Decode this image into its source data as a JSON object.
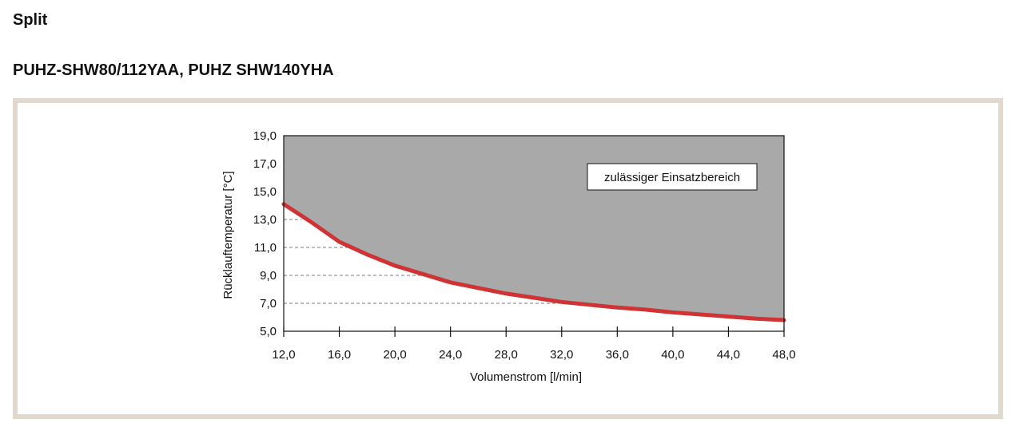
{
  "page": {
    "section_title": "Split",
    "model_title": "PUHZ-SHW80/112YAA, PUHZ SHW140YHA"
  },
  "colors": {
    "frame": "#e1d9cf",
    "allowed_area": "#a9a9a9",
    "curve": "#cf3333",
    "dashed": "#7a7a7a"
  },
  "chart_data": {
    "type": "area",
    "title": "",
    "xlabel": "Volumenstrom [l/min]",
    "ylabel": "Rücklauftemperatur [°C]",
    "xlim": [
      12,
      48
    ],
    "ylim": [
      5,
      19
    ],
    "x_ticks": [
      "12,0",
      "16,0",
      "20,0",
      "24,0",
      "28,0",
      "32,0",
      "36,0",
      "40,0",
      "44,0",
      "48,0"
    ],
    "y_ticks": [
      "5,0",
      "7,0",
      "9,0",
      "11,0",
      "13,0",
      "15,0",
      "17,0",
      "19,0"
    ],
    "series": [
      {
        "x": [
          12,
          14,
          16,
          18,
          20,
          22,
          24,
          26,
          28,
          30,
          32,
          34,
          36,
          38,
          40,
          42,
          44,
          46,
          48
        ],
        "y": [
          14.1,
          12.8,
          11.4,
          10.5,
          9.7,
          9.1,
          8.5,
          8.1,
          7.7,
          7.4,
          7.1,
          6.9,
          6.7,
          6.55,
          6.35,
          6.2,
          6.05,
          5.9,
          5.8
        ]
      }
    ],
    "reference_lines": [
      {
        "y": 13.0,
        "x_end": 13.3
      },
      {
        "y": 11.0,
        "x_end": 16.6
      },
      {
        "y": 9.0,
        "x_end": 22.2
      },
      {
        "y": 7.0,
        "x_end": 32.5
      }
    ],
    "annotation": "zulässiger Einsatzbereich",
    "grid": false
  }
}
